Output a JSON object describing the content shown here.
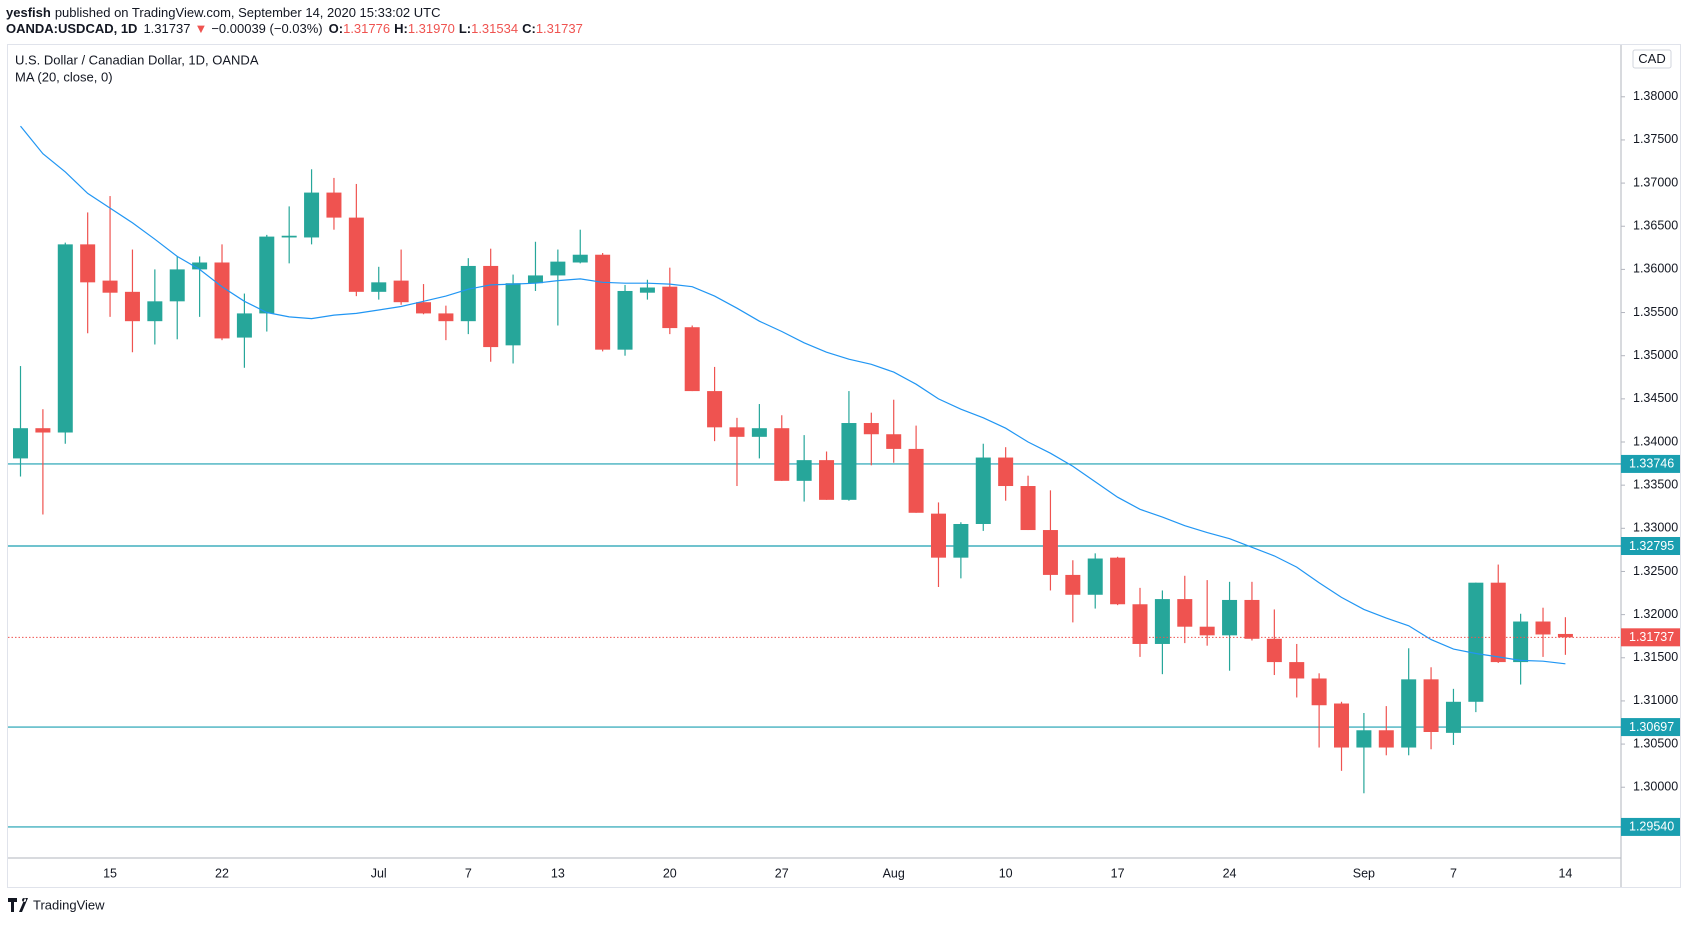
{
  "header": {
    "user": "yesfish",
    "publisher": "published on TradingView.com, September 14, 2020 15:33:02 UTC",
    "symbol": "OANDA:USDCAD, 1D",
    "last": "1.31737",
    "arrow": "▼",
    "change": "−0.00039 (−0.03%)",
    "o_label": "O:",
    "o": "1.31776",
    "h_label": "H:",
    "h": "1.31970",
    "l_label": "L:",
    "l": "1.31534",
    "c_label": "C:",
    "c": "1.31737"
  },
  "chart_data": {
    "type": "candlestick",
    "title": "U.S. Dollar / Canadian Dollar, 1D, OANDA",
    "currency": "CAD",
    "up_color": "#26a69a",
    "down_color": "#ef5350",
    "categories": [
      null,
      null,
      null,
      null,
      "15",
      null,
      null,
      null,
      null,
      "22",
      null,
      null,
      null,
      null,
      null,
      null,
      "Jul",
      null,
      null,
      null,
      "7",
      null,
      null,
      null,
      "13",
      null,
      null,
      null,
      null,
      "20",
      null,
      null,
      null,
      null,
      "27",
      null,
      null,
      null,
      null,
      "Aug",
      null,
      null,
      null,
      null,
      "10",
      null,
      null,
      null,
      null,
      "17",
      null,
      null,
      null,
      null,
      "24",
      null,
      null,
      null,
      null,
      null,
      "Sep",
      null,
      null,
      null,
      "7",
      null,
      null,
      null,
      null,
      "14"
    ],
    "open": [
      1.3381,
      1.3416,
      1.3411,
      1.3629,
      1.3587,
      1.3574,
      1.354,
      1.3563,
      1.36,
      1.3608,
      1.3521,
      1.3549,
      1.3637,
      1.3637,
      1.3689,
      1.366,
      1.3574,
      1.3587,
      1.3562,
      1.3549,
      1.354,
      1.3604,
      1.3512,
      1.3584,
      1.3593,
      1.3608,
      1.3617,
      1.3507,
      1.3573,
      1.358,
      1.3533,
      1.3459,
      1.3417,
      1.3406,
      1.3416,
      1.3355,
      1.3379,
      1.3333,
      1.3422,
      1.3409,
      1.3392,
      1.3317,
      1.3266,
      1.3305,
      1.3382,
      1.3349,
      1.3298,
      1.3246,
      1.3223,
      1.3266,
      1.3212,
      1.3166,
      1.3218,
      1.3186,
      1.3176,
      1.3217,
      1.3172,
      1.3145,
      1.3126,
      1.3097,
      1.3046,
      1.3066,
      1.3046,
      1.3125,
      1.3063,
      1.3099,
      1.3237,
      1.3145,
      1.3192,
      1.31776
    ],
    "high": [
      1.3488,
      1.3438,
      1.3631,
      1.3666,
      1.3685,
      1.3623,
      1.36,
      1.3615,
      1.3615,
      1.3629,
      1.3572,
      1.364,
      1.3673,
      1.3716,
      1.3706,
      1.3699,
      1.3603,
      1.3623,
      1.3583,
      1.3558,
      1.3613,
      1.3624,
      1.3594,
      1.3632,
      1.3623,
      1.3646,
      1.3619,
      1.3582,
      1.3588,
      1.3602,
      1.3535,
      1.3487,
      1.3428,
      1.3444,
      1.3431,
      1.3408,
      1.3389,
      1.3459,
      1.3434,
      1.3449,
      1.3419,
      1.333,
      1.3307,
      1.3398,
      1.3394,
      1.3361,
      1.3344,
      1.3263,
      1.3271,
      1.3267,
      1.3231,
      1.3228,
      1.3245,
      1.324,
      1.3238,
      1.3238,
      1.3206,
      1.3166,
      1.3132,
      1.3099,
      1.3086,
      1.3094,
      1.3161,
      1.3139,
      1.3114,
      1.3237,
      1.3258,
      1.3201,
      1.3208,
      1.3197
    ],
    "low": [
      1.336,
      1.3316,
      1.3398,
      1.3526,
      1.3545,
      1.3504,
      1.3513,
      1.3519,
      1.3545,
      1.3518,
      1.3486,
      1.3528,
      1.3607,
      1.3629,
      1.3646,
      1.3569,
      1.3565,
      1.3559,
      1.3548,
      1.3518,
      1.3525,
      1.3493,
      1.3491,
      1.3575,
      1.3535,
      1.3607,
      1.3505,
      1.35,
      1.3565,
      1.3525,
      1.3459,
      1.3401,
      1.3349,
      1.3381,
      1.3355,
      1.3331,
      1.3333,
      1.3332,
      1.3373,
      1.3376,
      1.3318,
      1.3232,
      1.3242,
      1.3297,
      1.3332,
      1.3298,
      1.3228,
      1.3191,
      1.3207,
      1.3211,
      1.3151,
      1.3131,
      1.3167,
      1.3164,
      1.3135,
      1.317,
      1.313,
      1.3104,
      1.3046,
      1.3019,
      1.2993,
      1.3037,
      1.3037,
      1.3044,
      1.3049,
      1.3087,
      1.3144,
      1.3119,
      1.3151,
      1.31534
    ],
    "close": [
      1.3416,
      1.3411,
      1.3629,
      1.3585,
      1.3573,
      1.354,
      1.3563,
      1.36,
      1.3608,
      1.352,
      1.3549,
      1.3638,
      1.3639,
      1.3689,
      1.366,
      1.3574,
      1.3585,
      1.3562,
      1.3549,
      1.354,
      1.3604,
      1.351,
      1.3584,
      1.3593,
      1.3609,
      1.3617,
      1.3507,
      1.3575,
      1.3579,
      1.3532,
      1.3459,
      1.3417,
      1.3406,
      1.3416,
      1.3355,
      1.3379,
      1.3333,
      1.3422,
      1.3409,
      1.3392,
      1.3318,
      1.3266,
      1.3305,
      1.3382,
      1.3349,
      1.3298,
      1.3246,
      1.3223,
      1.3265,
      1.3212,
      1.3166,
      1.3218,
      1.3186,
      1.3176,
      1.3217,
      1.3172,
      1.3145,
      1.3126,
      1.3095,
      1.3046,
      1.3066,
      1.3046,
      1.3125,
      1.3064,
      1.3099,
      1.3237,
      1.3145,
      1.3192,
      1.3177,
      1.31737
    ],
    "series": [
      {
        "name": "MA (20, close, 0)",
        "color": "#2196f3",
        "values": [
          1.3766,
          1.3734,
          1.3713,
          1.3688,
          1.3671,
          1.3654,
          1.3635,
          1.3615,
          1.36,
          1.358,
          1.3563,
          1.355,
          1.3545,
          1.3543,
          1.3547,
          1.3549,
          1.3553,
          1.3557,
          1.3563,
          1.3569,
          1.3577,
          1.3582,
          1.3583,
          1.3584,
          1.3587,
          1.3589,
          1.3585,
          1.3584,
          1.3584,
          1.3583,
          1.358,
          1.3569,
          1.3555,
          1.354,
          1.3528,
          1.3515,
          1.3504,
          1.3496,
          1.349,
          1.3481,
          1.3467,
          1.345,
          1.3438,
          1.3428,
          1.3416,
          1.34,
          1.3387,
          1.3372,
          1.3354,
          1.3336,
          1.3322,
          1.3313,
          1.3303,
          1.3295,
          1.3288,
          1.3278,
          1.3268,
          1.3255,
          1.3237,
          1.322,
          1.3206,
          1.3196,
          1.3187,
          1.3171,
          1.316,
          1.3155,
          1.3151,
          1.3147,
          1.3146,
          1.3143
        ]
      }
    ],
    "hlines": [
      1.33746,
      1.32795,
      1.30697,
      {
        "value": 1.2954,
        "label": "1.29540"
      }
    ],
    "hline_color": "#1a9fb0",
    "ylim": [
      1.2918,
      1.386
    ],
    "yticks": [
      {
        "value": 1.3,
        "label": "1.30000"
      },
      {
        "value": 1.305,
        "label": "1.30500"
      },
      {
        "value": 1.31,
        "label": "1.31000"
      },
      {
        "value": 1.315,
        "label": "1.31500"
      },
      {
        "value": 1.32,
        "label": "1.32000"
      },
      {
        "value": 1.325,
        "label": "1.32500"
      },
      {
        "value": 1.33,
        "label": "1.33000"
      },
      {
        "value": 1.335,
        "label": "1.33500"
      },
      {
        "value": 1.34,
        "label": "1.34000"
      },
      {
        "value": 1.345,
        "label": "1.34500"
      },
      {
        "value": 1.35,
        "label": "1.35000"
      },
      {
        "value": 1.355,
        "label": "1.35500"
      },
      {
        "value": 1.36,
        "label": "1.36000"
      },
      {
        "value": 1.365,
        "label": "1.36500"
      },
      {
        "value": 1.37,
        "label": "1.37000"
      },
      {
        "value": 1.375,
        "label": "1.37500"
      },
      {
        "value": 1.38,
        "label": "1.38000"
      }
    ]
  },
  "footer": {
    "brand": "TradingView"
  }
}
